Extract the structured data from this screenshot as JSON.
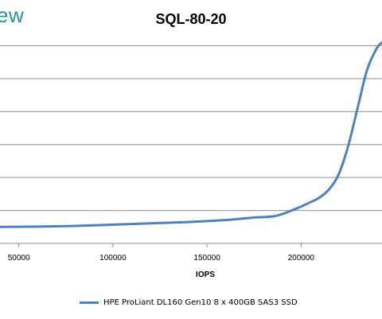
{
  "logo_text": "ew",
  "chart_data": {
    "type": "line",
    "title": "SQL-80-20",
    "xlabel": "IOPS",
    "ylabel": "",
    "xlim": [
      40000,
      243000
    ],
    "ylim": [
      0,
      7
    ],
    "ygrid": [
      1,
      2,
      3,
      4,
      5,
      6
    ],
    "xticks": [
      50000,
      100000,
      150000,
      200000
    ],
    "xtick_labels": [
      "50000",
      "100000",
      "150000",
      "200000"
    ],
    "grid": "horizontal",
    "legend_position": "bottom",
    "series": [
      {
        "name": "HPE ProLiant DL160 Gen10 8 x 400GB SAS3 SSD",
        "color": "#4f81bd",
        "x": [
          40000,
          60000,
          80000,
          100000,
          120000,
          140000,
          160000,
          170000,
          176000,
          180000,
          185000,
          190000,
          195000,
          200000,
          205000,
          210000,
          215000,
          220000,
          225000,
          230000,
          235000,
          240000,
          243000
        ],
        "y": [
          0.5,
          0.51,
          0.53,
          0.57,
          0.61,
          0.65,
          0.71,
          0.76,
          0.79,
          0.8,
          0.82,
          0.89,
          1.0,
          1.12,
          1.25,
          1.4,
          1.65,
          2.1,
          2.95,
          4.1,
          5.25,
          5.9,
          6.1
        ]
      }
    ]
  }
}
